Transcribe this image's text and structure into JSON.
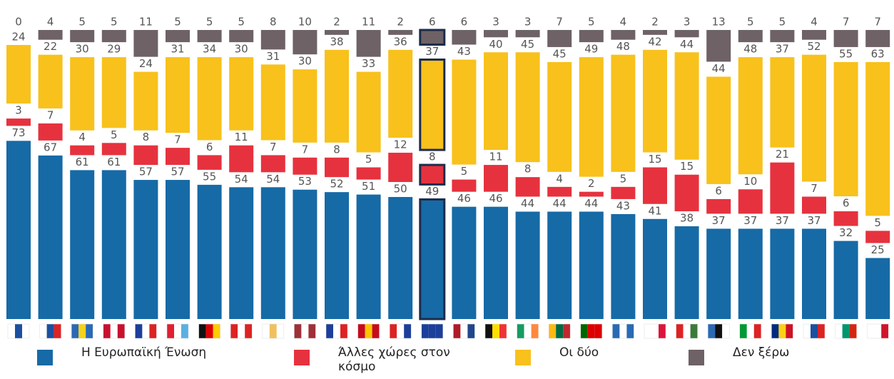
{
  "chart_data": {
    "type": "stacked_bar",
    "categories": [
      "FI",
      "SI",
      "SE",
      "DK",
      "FR",
      "LU",
      "DE",
      "AT",
      "CY",
      "LV",
      "CZ",
      "ES",
      "HR",
      "UE27",
      "NL",
      "BE",
      "IE",
      "LT",
      "PT",
      "EL",
      "PL",
      "HU",
      "EE",
      "IT",
      "RO",
      "SK",
      "BG",
      "MT"
    ],
    "highlight": "UE27",
    "series": [
      {
        "name": "Η Ευρωπαϊκή Ένωση",
        "color": "#166aa6",
        "values": [
          73,
          67,
          61,
          61,
          57,
          57,
          55,
          54,
          54,
          53,
          52,
          51,
          50,
          49,
          46,
          46,
          44,
          44,
          44,
          43,
          41,
          38,
          37,
          37,
          37,
          37,
          32,
          25
        ]
      },
      {
        "name": "Άλλες χώρες στον κόσμο",
        "color": "#e6323e",
        "values": [
          3,
          7,
          4,
          5,
          8,
          7,
          6,
          11,
          7,
          7,
          8,
          5,
          12,
          8,
          5,
          11,
          8,
          4,
          2,
          5,
          15,
          15,
          6,
          10,
          21,
          7,
          6,
          5
        ]
      },
      {
        "name": "Οι δύο",
        "color": "#f8c11c",
        "values": [
          24,
          22,
          30,
          29,
          24,
          31,
          34,
          30,
          31,
          30,
          38,
          33,
          36,
          37,
          43,
          40,
          45,
          45,
          49,
          48,
          42,
          44,
          44,
          48,
          37,
          52,
          55,
          63
        ]
      },
      {
        "name": "Δεν ξέρω",
        "color": "#6e6266",
        "values": [
          0,
          4,
          5,
          5,
          11,
          5,
          5,
          5,
          8,
          10,
          2,
          11,
          2,
          6,
          6,
          3,
          3,
          7,
          5,
          4,
          2,
          3,
          13,
          5,
          5,
          4,
          7,
          7
        ]
      }
    ]
  }
}
